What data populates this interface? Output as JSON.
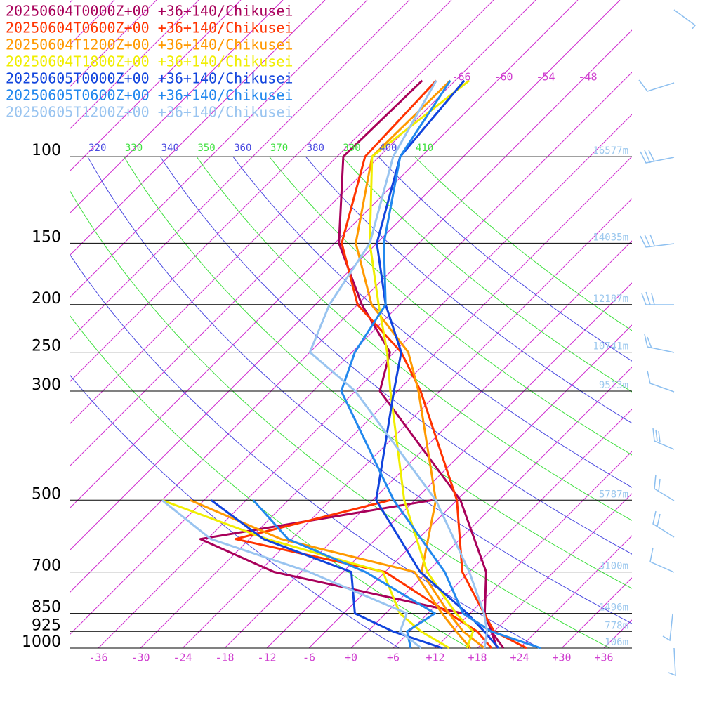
{
  "chart_data": {
    "type": "skewt",
    "log_scale": true,
    "ylim": [
      1000,
      48
    ],
    "yticks": [
      100,
      150,
      200,
      250,
      300,
      500,
      700,
      850,
      925,
      1000
    ],
    "height_labels": [
      "16577m",
      "14035m",
      "12187m",
      "10741m",
      "9513m",
      "5787m",
      "3100m",
      "1496m",
      "778m",
      "106m"
    ],
    "xlim": [
      -40,
      40
    ],
    "xticks": [
      -36,
      -30,
      -24,
      -18,
      -12,
      {
        "value": -6,
        "label": "-6"
      },
      {
        "value": 0,
        "label": "+0"
      },
      {
        "value": 6,
        "label": "+6"
      },
      {
        "value": 12,
        "label": "+12"
      },
      {
        "value": 18,
        "label": "+18"
      },
      {
        "value": 24,
        "label": "+24"
      },
      {
        "value": 30,
        "label": "+30"
      },
      {
        "value": 36,
        "label": "+36"
      }
    ],
    "upper_isotherm_labels": [
      -66,
      -60,
      -54,
      -48
    ],
    "theta_lines": [
      280,
      290,
      300,
      310,
      320,
      330,
      340,
      350,
      360,
      370,
      380,
      390,
      400,
      410
    ],
    "theta_labels": [
      320,
      330,
      340,
      350,
      360,
      370,
      380,
      390,
      400,
      410
    ],
    "theta_colors": [
      "#4a4ae0",
      "#40e040"
    ],
    "isotherm_color": "#d030d0",
    "pressure_levels": [
      1000,
      925,
      850,
      700,
      500,
      300,
      250,
      200,
      150,
      100,
      70
    ],
    "dewpoint_levels": [
      1000,
      925,
      850,
      700,
      600,
      500
    ],
    "series": [
      {
        "name": "20250604T0000Z+00 +36+140/Chikusei",
        "color": "#a8005a",
        "values": [
          21.7,
          17.6,
          14.1,
          8.4,
          -5.5,
          -32.5,
          -36.6,
          -47.4,
          -59.4,
          -71.1,
          -70.7
        ],
        "dewpoint": [
          20.8,
          17.6,
          11,
          -21.8,
          -37,
          -9.5
        ]
      },
      {
        "name": "20250604T0600Z+00 +36+140/Chikusei",
        "color": "#ff3300",
        "values": [
          25,
          18,
          14,
          5,
          -6,
          -26.7,
          -35,
          -48,
          -59,
          -68,
          -68.7
        ],
        "dewpoint": [
          20,
          15.6,
          9,
          -6,
          -32,
          -15.5
        ]
      },
      {
        "name": "20250604T1200Z+00 +36+140/Chikusei",
        "color": "#ff9900",
        "values": [
          19,
          13.6,
          9,
          -0.8,
          -9,
          -27,
          -34,
          -46,
          -57,
          -67,
          -66.7
        ],
        "dewpoint": [
          17,
          12.6,
          8,
          -1.8,
          -25.5,
          -44
        ]
      },
      {
        "name": "20250604T1800Z+00 +36+140/Chikusei",
        "color": "#f0ee00",
        "values": [
          16.5,
          15,
          10,
          0,
          -13.5,
          -31,
          -37,
          -45,
          -55,
          -67,
          -64
        ],
        "dewpoint": [
          14,
          7.6,
          2,
          -6.3,
          -27.5,
          -48
        ]
      },
      {
        "name": "20250605T0000Z+00 +36+140/Chikusei",
        "color": "#1144dd",
        "values": [
          21,
          16.6,
          11.6,
          -1,
          -17.5,
          -30.5,
          -35,
          -44,
          -54,
          -63,
          -64.7
        ],
        "dewpoint": [
          13,
          3.6,
          -4.4,
          -10.8,
          -28,
          -41
        ]
      },
      {
        "name": "20250605T0600Z+00 +36+140/Chikusei",
        "color": "#2288ee",
        "values": [
          27,
          17.6,
          11,
          2.5,
          -15,
          -38,
          -41.6,
          -44,
          -53,
          -63,
          -66.7
        ],
        "dewpoint": [
          8.5,
          5.6,
          7,
          -8.8,
          -24.5,
          -35
        ]
      },
      {
        "name": "20250605T1200Z+00 +36+140/Chikusei",
        "color": "#99c4f0",
        "values": [
          19,
          17,
          14,
          6,
          -9,
          -36,
          -48,
          -52,
          -55,
          -64,
          -68.7
        ],
        "dewpoint": [
          10,
          4.6,
          3,
          -16.8,
          -35.5,
          -48
        ]
      }
    ]
  }
}
